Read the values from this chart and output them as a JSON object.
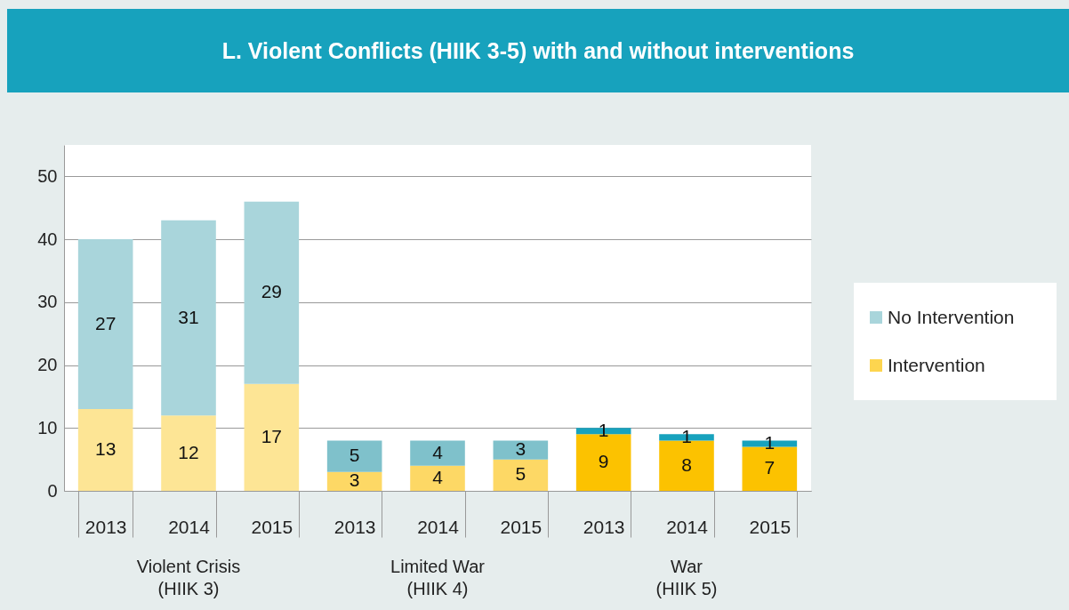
{
  "chart_data": {
    "type": "bar",
    "title": "L. Violent Conflicts (HIIK 3-5) with and without interventions",
    "categories": [
      "2013",
      "2014",
      "2015",
      "2013",
      "2014",
      "2015",
      "2013",
      "2014",
      "2015"
    ],
    "stacked": true,
    "data_labels": true,
    "grid": "y",
    "legend": "right",
    "ylim": [
      0,
      55
    ],
    "yticks": [
      0,
      10,
      20,
      30,
      40,
      50
    ],
    "annotations": [
      "Violent Crisis\n(HIIK 3)",
      "Limited War\n(HIIK 4)",
      "War\n(HIIK 5)"
    ],
    "series": [
      {
        "name": "Intervention",
        "color": "#fdd54f",
        "colors": [
          "#fde595",
          "#fde595",
          "#fde595",
          "#fdd865",
          "#fdd865",
          "#fdd865",
          "#fcc200",
          "#fcc200",
          "#fcc200"
        ],
        "values": [
          13,
          12,
          17,
          3,
          4,
          5,
          9,
          8,
          7
        ]
      },
      {
        "name": "No Intervention",
        "color": "#a9d5db",
        "colors": [
          "#a9d5db",
          "#a9d5db",
          "#a9d5db",
          "#7fc1cb",
          "#7fc1cb",
          "#7fc1cb",
          "#17a2bd",
          "#17a2bd",
          "#17a2bd"
        ],
        "values": [
          27,
          31,
          29,
          5,
          4,
          3,
          1,
          1,
          1
        ]
      }
    ]
  }
}
